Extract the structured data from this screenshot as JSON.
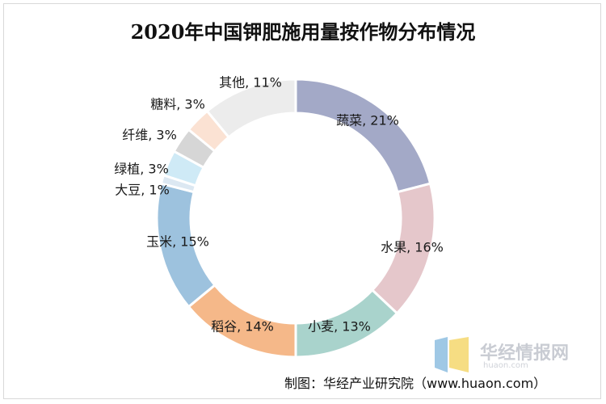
{
  "chart_data": {
    "type": "pie",
    "title": "2020年中国钾肥施用量按作物分布情况",
    "categories": [
      "蔬菜",
      "水果",
      "小麦",
      "稻谷",
      "玉米",
      "大豆",
      "绿植",
      "纤维",
      "糖料",
      "其他"
    ],
    "values": [
      21,
      16,
      13,
      14,
      15,
      1,
      3,
      3,
      3,
      11
    ],
    "value_labels": [
      "21%",
      "16%",
      "13%",
      "14%",
      "15%",
      "1%",
      "3%",
      "3%",
      "3%",
      "11%"
    ],
    "colors": [
      "#a3a9c7",
      "#e5c7cb",
      "#a9d3cc",
      "#f5b889",
      "#9dc2de",
      "#dce8f2",
      "#cfeaf6",
      "#d6d6d6",
      "#fbe2d3",
      "#ececec"
    ],
    "legend": "none"
  },
  "source": "制图：华经产业研究院（www.huaon.com）",
  "watermark": {
    "name": "华经情报网",
    "url": "huaon.com",
    "colors": [
      "#7fb5dc",
      "#f3d25a"
    ]
  }
}
